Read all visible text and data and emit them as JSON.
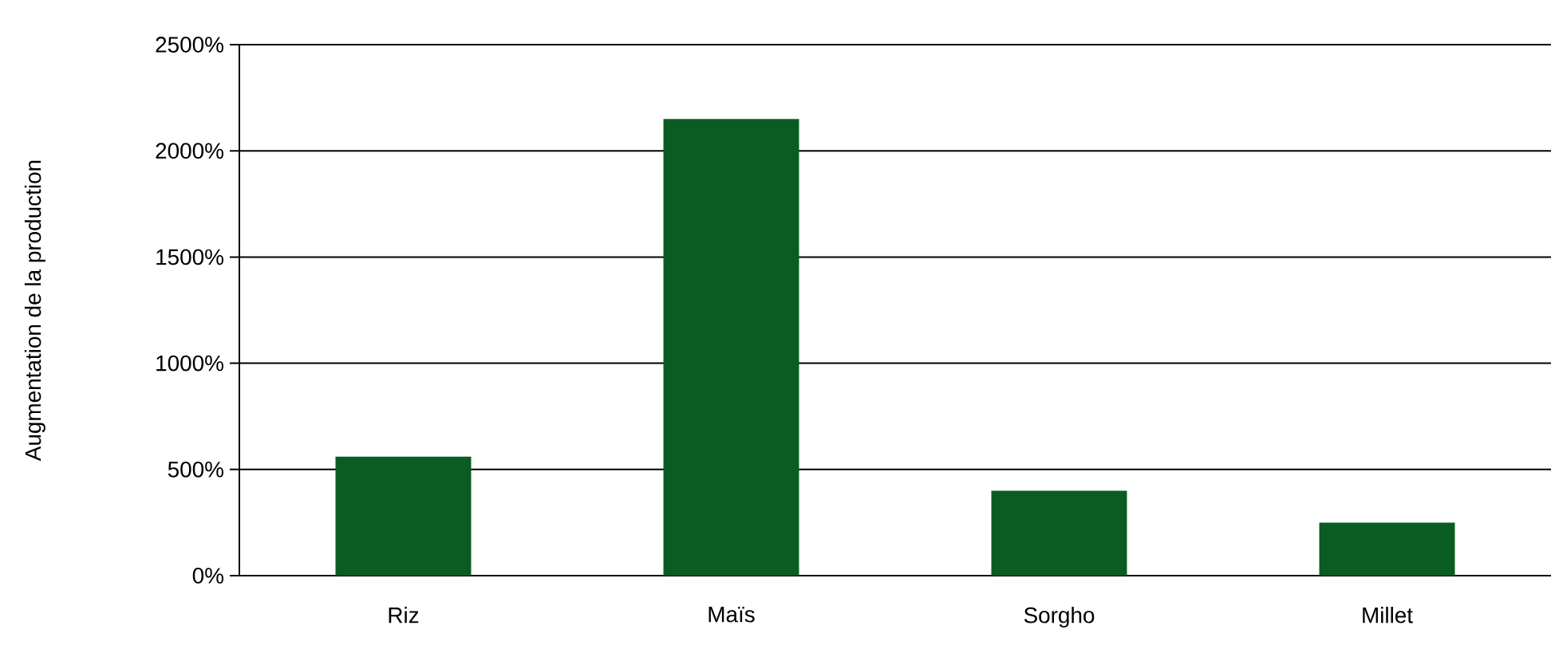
{
  "chart_data": {
    "type": "bar",
    "ylabel": "Augmentation de la production",
    "categories": [
      "Riz",
      "Maïs",
      "Sorgho",
      "Millet"
    ],
    "values": [
      560,
      2150,
      400,
      250
    ],
    "color": "#0b5c22",
    "ylim": [
      0,
      2500
    ],
    "yticks": [
      {
        "value": 0,
        "label": "0%"
      },
      {
        "value": 500,
        "label": "500%"
      },
      {
        "value": 1000,
        "label": "1000%"
      },
      {
        "value": 1500,
        "label": "1500%"
      },
      {
        "value": 2000,
        "label": "2000%"
      },
      {
        "value": 2500,
        "label": "2500%"
      }
    ],
    "grid": "y"
  }
}
